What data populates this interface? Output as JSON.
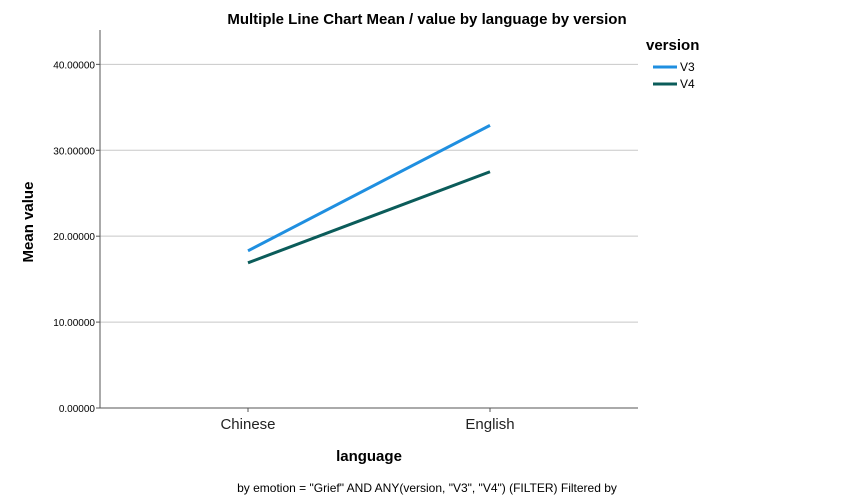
{
  "chart_data": {
    "type": "line",
    "title": "Multiple Line Chart Mean /  value by language by version",
    "xlabel": "language",
    "ylabel": "Mean value",
    "categories": [
      "Chinese",
      "English"
    ],
    "ylim": [
      0,
      44
    ],
    "yticks": [
      0,
      10,
      20,
      30,
      40
    ],
    "ytick_labels": [
      "0.00000",
      "10.00000",
      "20.00000",
      "30.00000",
      "40.00000"
    ],
    "grid": true,
    "legend": {
      "title": "version",
      "position": "top-right"
    },
    "series": [
      {
        "name": "V3",
        "values": [
          18.3,
          32.9
        ],
        "color": "#1f8fe0"
      },
      {
        "name": "V4",
        "values": [
          16.9,
          27.5
        ],
        "color": "#0b5c5a"
      }
    ],
    "footnote": "by emotion = \"Grief\" AND ANY(version, \"V3\", \"V4\") (FILTER) Filtered by"
  }
}
